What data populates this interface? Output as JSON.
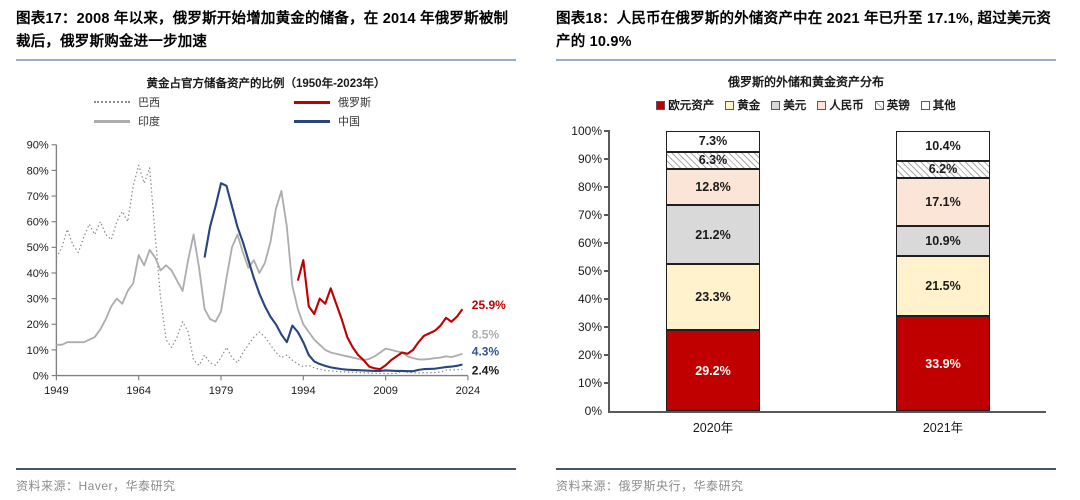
{
  "panels": {
    "left": {
      "header": "图表17：2008 年以来，俄罗斯开始增加黄金的储备，在 2014 年俄罗斯被制裁后，俄罗斯购金进一步加速",
      "source": "资料来源：Haver，华泰研究"
    },
    "right": {
      "header": "图表18：人民币在俄罗斯的外储资产中在 2021 年已升至 17.1%, 超过美元资产的 10.9%",
      "source": "资料来源：俄罗斯央行，华泰研究"
    }
  },
  "chart_data": [
    {
      "type": "line",
      "title": "黄金占官方储备资产的比例（1950年-2023年）",
      "xlabel": "",
      "ylabel": "",
      "xlim": [
        1949,
        2024
      ],
      "ylim": [
        0,
        90
      ],
      "x_ticks": [
        "1949",
        "1964",
        "1979",
        "1994",
        "2009",
        "2024"
      ],
      "y_ticks": [
        "0%",
        "10%",
        "20%",
        "30%",
        "40%",
        "50%",
        "60%",
        "70%",
        "80%",
        "90%"
      ],
      "grid": false,
      "legend_position": "top",
      "legend_order": [
        "巴西",
        "俄罗斯",
        "印度",
        "中国"
      ],
      "series": [
        {
          "name": "巴西",
          "style": "dotted",
          "color": "#8C8C8C",
          "end_label": "2.4%",
          "end_label_color": "#1A1A1A",
          "points": [
            [
              1949,
              46
            ],
            [
              1950,
              50
            ],
            [
              1951,
              57
            ],
            [
              1952,
              51
            ],
            [
              1953,
              48
            ],
            [
              1954,
              54
            ],
            [
              1955,
              59
            ],
            [
              1956,
              55
            ],
            [
              1957,
              60
            ],
            [
              1958,
              55
            ],
            [
              1959,
              53
            ],
            [
              1960,
              60
            ],
            [
              1961,
              64
            ],
            [
              1962,
              60
            ],
            [
              1963,
              74
            ],
            [
              1964,
              82
            ],
            [
              1965,
              75
            ],
            [
              1966,
              81
            ],
            [
              1967,
              55
            ],
            [
              1968,
              30
            ],
            [
              1969,
              14
            ],
            [
              1970,
              11
            ],
            [
              1971,
              15
            ],
            [
              1972,
              21
            ],
            [
              1973,
              17
            ],
            [
              1974,
              6
            ],
            [
              1975,
              4
            ],
            [
              1976,
              8
            ],
            [
              1977,
              5
            ],
            [
              1978,
              4
            ],
            [
              1979,
              7
            ],
            [
              1980,
              11
            ],
            [
              1981,
              7
            ],
            [
              1982,
              5
            ],
            [
              1983,
              9
            ],
            [
              1984,
              12
            ],
            [
              1985,
              15
            ],
            [
              1986,
              17
            ],
            [
              1987,
              15
            ],
            [
              1988,
              12
            ],
            [
              1989,
              9
            ],
            [
              1990,
              7
            ],
            [
              1991,
              8
            ],
            [
              1992,
              6
            ],
            [
              1993,
              4.5
            ],
            [
              1994,
              3.5
            ],
            [
              1995,
              4
            ],
            [
              1996,
              3
            ],
            [
              1997,
              2.5
            ],
            [
              1998,
              2
            ],
            [
              1999,
              1.8
            ],
            [
              2000,
              1.6
            ],
            [
              2001,
              1.5
            ],
            [
              2002,
              1.4
            ],
            [
              2003,
              1.3
            ],
            [
              2004,
              1.2
            ],
            [
              2005,
              1.1
            ],
            [
              2006,
              1
            ],
            [
              2007,
              0.9
            ],
            [
              2008,
              0.9
            ],
            [
              2009,
              0.8
            ],
            [
              2010,
              0.8
            ],
            [
              2011,
              0.9
            ],
            [
              2012,
              1.6
            ],
            [
              2013,
              1.3
            ],
            [
              2014,
              1.1
            ],
            [
              2015,
              1
            ],
            [
              2016,
              1.1
            ],
            [
              2017,
              1.1
            ],
            [
              2018,
              1.2
            ],
            [
              2019,
              1.3
            ],
            [
              2020,
              2.1
            ],
            [
              2021,
              2.2
            ],
            [
              2022,
              2.3
            ],
            [
              2023,
              2.4
            ]
          ]
        },
        {
          "name": "印度",
          "style": "solid",
          "color": "#ADADAD",
          "end_label": "8.5%",
          "end_label_color": "#ADADAD",
          "points": [
            [
              1949,
              12
            ],
            [
              1950,
              12
            ],
            [
              1951,
              13
            ],
            [
              1952,
              13
            ],
            [
              1953,
              13
            ],
            [
              1954,
              13
            ],
            [
              1955,
              14
            ],
            [
              1956,
              15
            ],
            [
              1957,
              18
            ],
            [
              1958,
              22
            ],
            [
              1959,
              27
            ],
            [
              1960,
              30
            ],
            [
              1961,
              28
            ],
            [
              1962,
              33
            ],
            [
              1963,
              36
            ],
            [
              1964,
              47
            ],
            [
              1965,
              43
            ],
            [
              1966,
              49
            ],
            [
              1967,
              46
            ],
            [
              1968,
              41
            ],
            [
              1969,
              43
            ],
            [
              1970,
              41
            ],
            [
              1971,
              37
            ],
            [
              1972,
              33
            ],
            [
              1973,
              45
            ],
            [
              1974,
              55
            ],
            [
              1975,
              42
            ],
            [
              1976,
              26
            ],
            [
              1977,
              22
            ],
            [
              1978,
              21
            ],
            [
              1979,
              25
            ],
            [
              1980,
              38
            ],
            [
              1981,
              50
            ],
            [
              1982,
              55
            ],
            [
              1983,
              48
            ],
            [
              1984,
              42
            ],
            [
              1985,
              45
            ],
            [
              1986,
              40
            ],
            [
              1987,
              44
            ],
            [
              1988,
              52
            ],
            [
              1989,
              65
            ],
            [
              1990,
              72
            ],
            [
              1991,
              58
            ],
            [
              1992,
              35
            ],
            [
              1993,
              26
            ],
            [
              1994,
              20
            ],
            [
              1995,
              17
            ],
            [
              1996,
              14
            ],
            [
              1997,
              12
            ],
            [
              1998,
              10
            ],
            [
              1999,
              9
            ],
            [
              2000,
              8.5
            ],
            [
              2001,
              8
            ],
            [
              2002,
              7.5
            ],
            [
              2003,
              7
            ],
            [
              2004,
              6.5
            ],
            [
              2005,
              6
            ],
            [
              2006,
              6.5
            ],
            [
              2007,
              7.5
            ],
            [
              2008,
              9
            ],
            [
              2009,
              10.5
            ],
            [
              2010,
              10
            ],
            [
              2011,
              9.5
            ],
            [
              2012,
              9
            ],
            [
              2013,
              7.5
            ],
            [
              2014,
              6.8
            ],
            [
              2015,
              6.3
            ],
            [
              2016,
              6.3
            ],
            [
              2017,
              6.5
            ],
            [
              2018,
              6.8
            ],
            [
              2019,
              7
            ],
            [
              2020,
              7.5
            ],
            [
              2021,
              7.2
            ],
            [
              2022,
              7.8
            ],
            [
              2023,
              8.5
            ]
          ]
        },
        {
          "name": "俄罗斯",
          "style": "solid",
          "color": "#C00000",
          "end_label": "25.9%",
          "end_label_color": "#C00000",
          "points": [
            [
              1993,
              37
            ],
            [
              1994,
              45
            ],
            [
              1995,
              27
            ],
            [
              1996,
              24
            ],
            [
              1997,
              30
            ],
            [
              1998,
              28
            ],
            [
              1999,
              34
            ],
            [
              2000,
              28
            ],
            [
              2001,
              22
            ],
            [
              2002,
              15
            ],
            [
              2003,
              11
            ],
            [
              2004,
              8
            ],
            [
              2005,
              6
            ],
            [
              2006,
              3.5
            ],
            [
              2007,
              2.8
            ],
            [
              2008,
              2.5
            ],
            [
              2009,
              4
            ],
            [
              2010,
              6
            ],
            [
              2011,
              7.5
            ],
            [
              2012,
              9
            ],
            [
              2013,
              8.5
            ],
            [
              2014,
              10
            ],
            [
              2015,
              13
            ],
            [
              2016,
              15.5
            ],
            [
              2017,
              16.5
            ],
            [
              2018,
              17.5
            ],
            [
              2019,
              19.5
            ],
            [
              2020,
              22.5
            ],
            [
              2021,
              21
            ],
            [
              2022,
              23
            ],
            [
              2023,
              25.9
            ]
          ]
        },
        {
          "name": "中国",
          "style": "solid",
          "color": "#27457E",
          "end_label": "4.3%",
          "end_label_color": "#2E5597",
          "points": [
            [
              1976,
              46
            ],
            [
              1977,
              58
            ],
            [
              1978,
              66
            ],
            [
              1979,
              75
            ],
            [
              1980,
              74
            ],
            [
              1981,
              66
            ],
            [
              1982,
              58
            ],
            [
              1983,
              52
            ],
            [
              1984,
              45
            ],
            [
              1985,
              38
            ],
            [
              1986,
              32
            ],
            [
              1987,
              27
            ],
            [
              1988,
              23
            ],
            [
              1989,
              20
            ],
            [
              1990,
              16
            ],
            [
              1991,
              13
            ],
            [
              1992,
              19.5
            ],
            [
              1993,
              17
            ],
            [
              1994,
              13
            ],
            [
              1995,
              8
            ],
            [
              1996,
              5.5
            ],
            [
              1997,
              4.5
            ],
            [
              1998,
              3.8
            ],
            [
              1999,
              3.2
            ],
            [
              2000,
              2.8
            ],
            [
              2001,
              2.5
            ],
            [
              2002,
              2.3
            ],
            [
              2003,
              2.2
            ],
            [
              2004,
              2.1
            ],
            [
              2005,
              2
            ],
            [
              2006,
              1.9
            ],
            [
              2007,
              1.8
            ],
            [
              2008,
              1.8
            ],
            [
              2009,
              2
            ],
            [
              2010,
              1.9
            ],
            [
              2011,
              1.8
            ],
            [
              2012,
              1.8
            ],
            [
              2013,
              1.7
            ],
            [
              2014,
              1.7
            ],
            [
              2015,
              2.2
            ],
            [
              2016,
              2.5
            ],
            [
              2017,
              2.6
            ],
            [
              2018,
              2.7
            ],
            [
              2019,
              3
            ],
            [
              2020,
              3.3
            ],
            [
              2021,
              3.5
            ],
            [
              2022,
              3.8
            ],
            [
              2023,
              4.3
            ]
          ]
        }
      ]
    },
    {
      "type": "bar",
      "subtype": "stacked",
      "title": "俄罗斯的外储和黄金资产分布",
      "categories": [
        "2020年",
        "2021年"
      ],
      "ylim": [
        0,
        100
      ],
      "y_ticks": [
        "0%",
        "10%",
        "20%",
        "30%",
        "40%",
        "50%",
        "60%",
        "70%",
        "80%",
        "90%",
        "100%"
      ],
      "grid": false,
      "legend_position": "top",
      "series": [
        {
          "name": "欧元资产",
          "color": "#C00000",
          "pattern": "solid",
          "text_color": "#FFFFFF",
          "values": [
            29.2,
            33.9
          ]
        },
        {
          "name": "黄金",
          "color": "#FFF2CC",
          "pattern": "solid",
          "text_color": "#1A1A1A",
          "values": [
            23.3,
            21.5
          ]
        },
        {
          "name": "美元",
          "color": "#D9D9D9",
          "pattern": "solid",
          "text_color": "#1A1A1A",
          "values": [
            21.2,
            10.9
          ]
        },
        {
          "name": "人民币",
          "color": "#FBE5D6",
          "pattern": "solid",
          "text_color": "#1A1A1A",
          "values": [
            12.8,
            17.1
          ]
        },
        {
          "name": "英镑",
          "color": "#FFFFFF",
          "pattern": "hatch",
          "text_color": "#1A1A1A",
          "values": [
            6.3,
            6.2
          ]
        },
        {
          "name": "其他",
          "color": "#FFFFFF",
          "pattern": "solid",
          "text_color": "#1A1A1A",
          "values": [
            7.3,
            10.4
          ]
        }
      ]
    }
  ]
}
